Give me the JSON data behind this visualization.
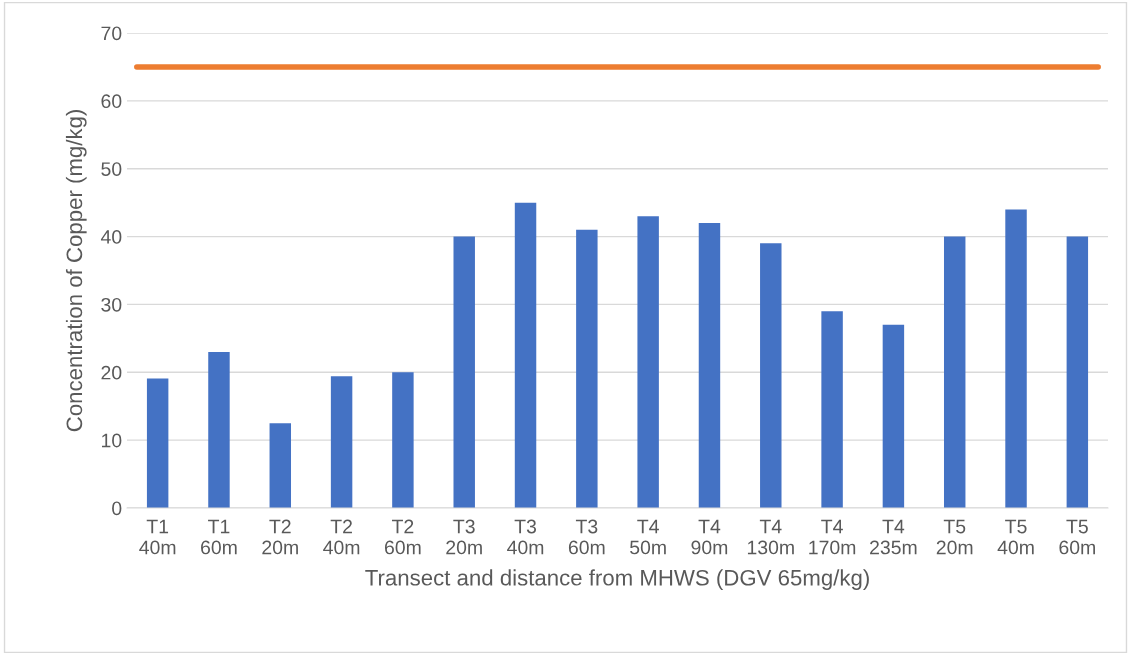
{
  "chart_data": {
    "type": "bar",
    "xlabel": "Transect and distance from MHWS (DGV 65mg/kg)",
    "ylabel": "Concentration of Copper (mg/kg)",
    "categories": [
      "T1\n40m",
      "T1\n60m",
      "T2\n20m",
      "T2\n40m",
      "T2\n60m",
      "T3\n20m",
      "T3\n40m",
      "T3\n60m",
      "T4\n50m",
      "T4\n90m",
      "T4\n130m",
      "T4\n170m",
      "T4\n235m",
      "T5\n20m",
      "T5\n40m",
      "T5\n60m"
    ],
    "values": [
      19.1,
      23,
      12.5,
      19.4,
      20,
      40,
      45,
      41,
      43,
      42,
      39,
      29,
      27,
      40,
      44,
      40
    ],
    "color": "#4472c4",
    "ylim": [
      0,
      70
    ],
    "yticks": [
      0,
      10,
      20,
      30,
      40,
      50,
      60,
      70
    ],
    "grid": "y",
    "ref_lines": [
      {
        "axis": "y",
        "value": 65,
        "color": "#ed7d31",
        "line_style": "solid"
      }
    ]
  }
}
